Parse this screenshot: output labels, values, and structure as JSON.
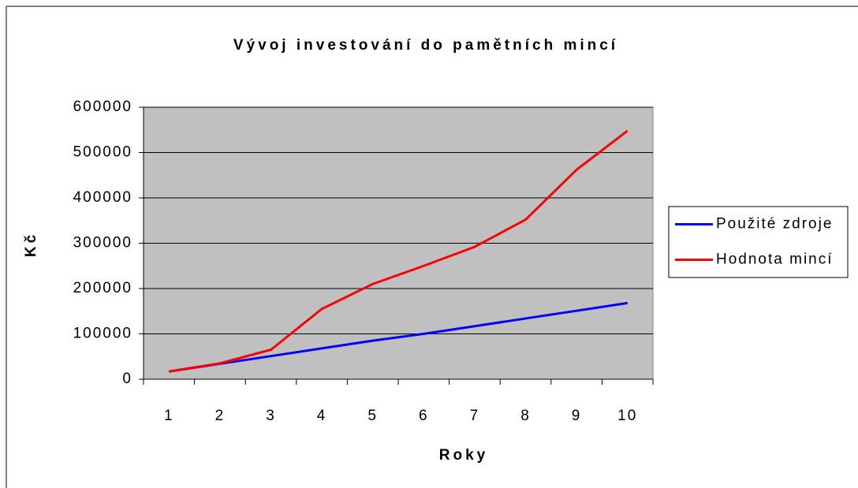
{
  "chart_data": {
    "type": "line",
    "title": "Vývoj investování do pamětních mincí",
    "x_label": "Roky",
    "y_label": "Kč",
    "categories": [
      "1",
      "2",
      "3",
      "4",
      "5",
      "6",
      "7",
      "8",
      "9",
      "10"
    ],
    "series": [
      {
        "name": "Použité zdroje",
        "color": "#0000ff",
        "values": [
          17000,
          34000,
          51000,
          68000,
          85000,
          100000,
          117000,
          134000,
          151000,
          168000
        ]
      },
      {
        "name": "Hodnota mincí",
        "color": "#ff0000",
        "values": [
          17000,
          35000,
          65000,
          155000,
          210000,
          250000,
          292000,
          352000,
          462000,
          548000
        ]
      }
    ],
    "ylim": [
      0,
      600000
    ],
    "yticks": [
      0,
      100000,
      200000,
      300000,
      400000,
      500000,
      600000
    ],
    "grid": true,
    "legend": "right",
    "plot_background": "#c0c0c0"
  }
}
